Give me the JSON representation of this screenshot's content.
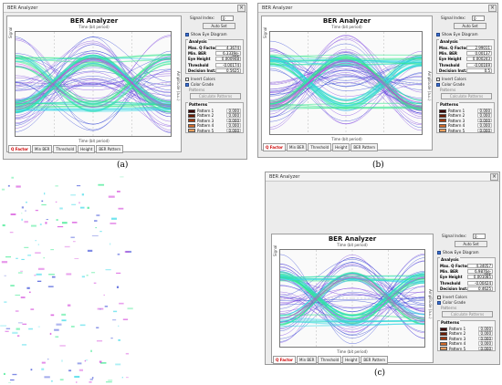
{
  "windows": [
    {
      "title": "BER Analyzer",
      "chart_title": "BER Analyzer",
      "x_axis_top": "Time (bit period)",
      "x_axis_bottom": "Time (bit period)",
      "y_axis_left": "Signal",
      "y_axis_right": "Amplitude (a.u.)",
      "signal_index_label": "Signal Index:",
      "signal_index_value": "0",
      "auto_set": "Auto Set",
      "show_eye": "Show Eye Diagram",
      "analysis_title": "Analysis",
      "analysis": [
        {
          "k": "Max. Q Factor",
          "v": "4.3674"
        },
        {
          "k": "Min. BER",
          "v": "6.3339e-006"
        },
        {
          "k": "Eye Height",
          "v": "0.000948"
        },
        {
          "k": "Threshold",
          "v": "-0.00174"
        },
        {
          "k": "Decision Inst.",
          "v": "0.5625"
        }
      ],
      "invert_colors": "Invert Colors",
      "color_grade": "Color Grade",
      "patterns_label": "Patterns",
      "calc_patterns": "Calculate Patterns",
      "patterns_title": "Patterns",
      "patterns": [
        "Pattern 1",
        "Pattern 2",
        "Pattern 3",
        "Pattern 4",
        "Pattern 5"
      ],
      "pattern_values": [
        "0.000",
        "0.000",
        "0.000",
        "0.000",
        "0.000"
      ],
      "tabs": [
        "Q Factor",
        "Min BER",
        "Threshold",
        "Height",
        "BER Pattern"
      ],
      "caption": "(a)"
    },
    {
      "title": "BER Analyzer",
      "chart_title": "BER Analyzer",
      "x_axis_top": "Time (bit period)",
      "x_axis_bottom": "Time (bit period)",
      "y_axis_left": "Signal",
      "y_axis_right": "Amplitude (a.u.)",
      "signal_index_label": "Signal Index:",
      "signal_index_value": "0",
      "auto_set": "Auto Set",
      "show_eye": "Show Eye Diagram",
      "analysis_title": "Analysis",
      "analysis": [
        {
          "k": "Max. Q Factor",
          "v": "2.99011"
        },
        {
          "k": "Min. BER",
          "v": "0.00137"
        },
        {
          "k": "Eye Height",
          "v": "0.000243"
        },
        {
          "k": "Threshold",
          "v": "-0.00169"
        },
        {
          "k": "Decision Inst.",
          "v": "0.5"
        }
      ],
      "invert_colors": "Invert Colors",
      "color_grade": "Color Grade",
      "patterns_label": "Patterns",
      "calc_patterns": "Calculate Patterns",
      "patterns_title": "Patterns",
      "patterns": [
        "Pattern 1",
        "Pattern 2",
        "Pattern 3",
        "Pattern 4",
        "Pattern 5"
      ],
      "pattern_values": [
        "0.000",
        "0.000",
        "0.000",
        "0.000",
        "0.000"
      ],
      "tabs": [
        "Q Factor",
        "Min BER",
        "Threshold",
        "Height",
        "BER Pattern"
      ],
      "caption": "(b)"
    },
    {
      "title": "BER Analyzer",
      "chart_title": "BER Analyzer",
      "x_axis_top": "Time (bit period)",
      "x_axis_bottom": "Time (bit period)",
      "y_axis_left": "Signal",
      "y_axis_right": "Amplitude (a.u.)",
      "signal_index_label": "Signal Index:",
      "signal_index_value": "0",
      "auto_set": "Auto Set",
      "show_eye": "Show Eye Diagram",
      "analysis_title": "Analysis",
      "analysis": [
        {
          "k": "Max. Q Factor",
          "v": "4.34057"
        },
        {
          "k": "Min. BER",
          "v": "6.9876e-006"
        },
        {
          "k": "Eye Height",
          "v": "0.001085"
        },
        {
          "k": "Threshold",
          "v": "-0.00424"
        },
        {
          "k": "Decision Inst.",
          "v": "0.4625"
        }
      ],
      "invert_colors": "Invert Colors",
      "color_grade": "Color Grade",
      "patterns_label": "Patterns",
      "calc_patterns": "Calculate Patterns",
      "patterns_title": "Patterns",
      "patterns": [
        "Pattern 1",
        "Pattern 2",
        "Pattern 3",
        "Pattern 4",
        "Pattern 5"
      ],
      "pattern_values": [
        "0.000",
        "0.000",
        "0.000",
        "0.000",
        "0.000"
      ],
      "tabs": [
        "Q Factor",
        "Min BER",
        "Threshold",
        "Height",
        "BER Pattern"
      ],
      "caption": "(c)"
    }
  ],
  "colors": {
    "trace_green": "#32e88a",
    "trace_cyan": "#2fd7e6",
    "trace_blue": "#2b3fd4",
    "trace_purple": "#7a3fe0",
    "trace_magenta": "#d13ad8",
    "pattern_swatches": [
      "#3a0000",
      "#6a1a00",
      "#a03a10",
      "#d06a2a",
      "#f2a060"
    ]
  }
}
